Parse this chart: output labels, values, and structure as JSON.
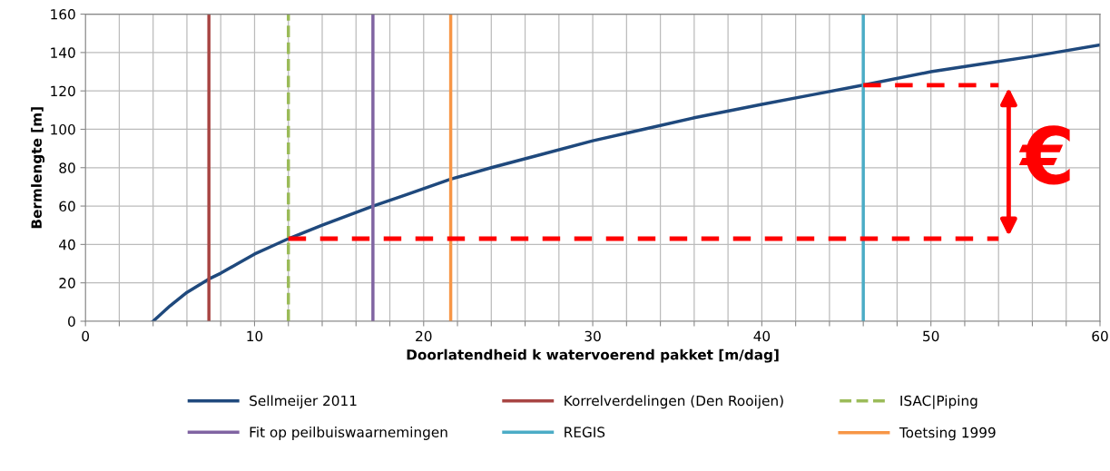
{
  "chart_data": {
    "type": "line",
    "xlabel": "Doorlatendheid k watervoerend pakket [m/dag]",
    "ylabel": "Bermlengte [m]",
    "xlim": [
      0,
      60
    ],
    "ylim": [
      0,
      160
    ],
    "xticks": [
      0,
      {
        "value": 2,
        "label": null
      },
      {
        "value": 4,
        "label": null
      },
      {
        "value": 6,
        "label": null
      },
      {
        "value": 8,
        "label": null
      },
      10,
      {
        "value": 12,
        "label": null
      },
      {
        "value": 14,
        "label": null
      },
      {
        "value": 16,
        "label": null
      },
      {
        "value": 18,
        "label": null
      },
      20,
      {
        "value": 22,
        "label": null
      },
      {
        "value": 24,
        "label": null
      },
      {
        "value": 26,
        "label": null
      },
      {
        "value": 28,
        "label": null
      },
      30,
      {
        "value": 32,
        "label": null
      },
      {
        "value": 34,
        "label": null
      },
      {
        "value": 36,
        "label": null
      },
      {
        "value": 38,
        "label": null
      },
      40,
      {
        "value": 42,
        "label": null
      },
      {
        "value": 44,
        "label": null
      },
      {
        "value": 46,
        "label": null
      },
      {
        "value": 48,
        "label": null
      },
      50,
      {
        "value": 52,
        "label": null
      },
      {
        "value": 54,
        "label": null
      },
      {
        "value": 56,
        "label": null
      },
      {
        "value": 58,
        "label": null
      },
      60
    ],
    "yticks": [
      0,
      20,
      40,
      60,
      80,
      100,
      120,
      140,
      160
    ],
    "grid": true,
    "legend": "bottom",
    "marker": "none",
    "series": [
      {
        "name": "Sellmeijer 2011",
        "color": "#1f497d",
        "x": [
          4,
          5,
          6,
          7.3,
          8,
          9,
          10,
          11,
          12,
          14,
          17,
          19,
          21.6,
          24,
          27,
          30,
          33,
          36,
          40,
          43,
          46,
          50,
          53,
          56,
          60
        ],
        "values": [
          0,
          8,
          15,
          22,
          25,
          30,
          35,
          39,
          43,
          50,
          60,
          66,
          74,
          80,
          87,
          94,
          100,
          106,
          113,
          118,
          123,
          130,
          134,
          138,
          144
        ]
      },
      {
        "name": "Korrelverdelingen (Den Rooijen)",
        "color": "#a84543",
        "x": [
          7.3,
          7.3
        ],
        "values": [
          0,
          160
        ]
      },
      {
        "name": "ISAC|Piping",
        "color": "#9bbb59",
        "line_style": "dashed",
        "x": [
          12,
          12
        ],
        "values": [
          0,
          160
        ]
      },
      {
        "name": "Fit op peilbuiswaarnemingen",
        "color": "#8064a2",
        "x": [
          17,
          17
        ],
        "values": [
          0,
          160
        ]
      },
      {
        "name": "REGIS",
        "color": "#4bacc6",
        "x": [
          46,
          46
        ],
        "values": [
          0,
          160
        ]
      },
      {
        "name": "Toetsing 1999",
        "color": "#f79646",
        "x": [
          21.6,
          21.6
        ],
        "values": [
          0,
          160
        ]
      },
      {
        "color": "#ff0000",
        "line_style": "dashed",
        "x": [
          12,
          54
        ],
        "values": [
          43,
          43
        ]
      },
      {
        "color": "#ff0000",
        "line_style": "dashed",
        "x": [
          46,
          54
        ],
        "values": [
          123,
          123
        ]
      }
    ],
    "annotations": [
      "€"
    ]
  }
}
